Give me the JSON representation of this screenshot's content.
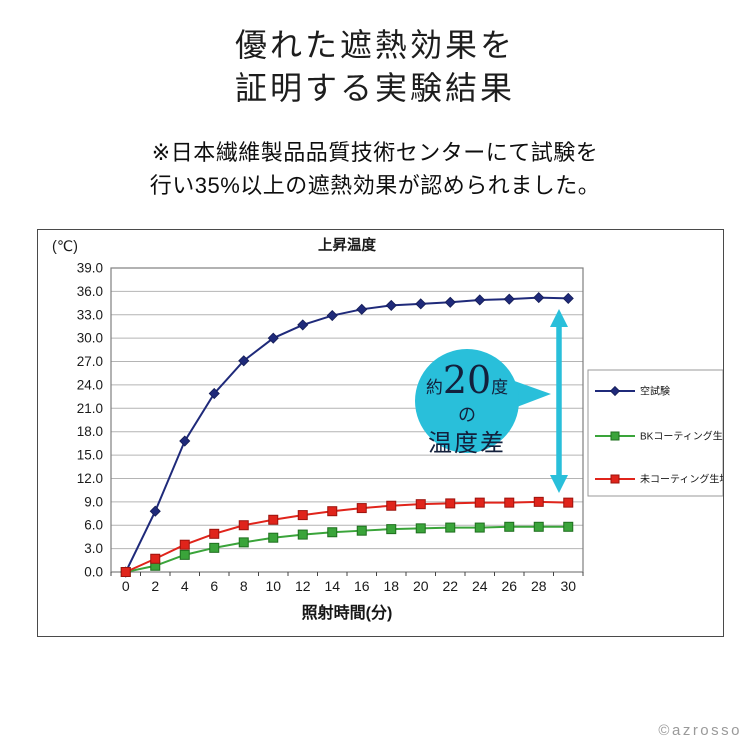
{
  "page": {
    "title": {
      "line1": "優れた遮熱効果を",
      "line2": "証明する実験結果"
    },
    "note": {
      "line1": "※日本繊維製品品質技術センターにて試験を",
      "line2": "行い35%以上の遮熱効果が認められました。"
    },
    "copyright": "©azrosso"
  },
  "chart_data": {
    "type": "line",
    "title": "上昇温度",
    "ylabel": "(℃)",
    "xlabel": "照射時間(分)",
    "ylim": [
      0,
      39
    ],
    "ytick_step": 3,
    "grid": true,
    "legend_position": "right",
    "x": [
      0,
      2,
      4,
      6,
      8,
      10,
      12,
      14,
      16,
      18,
      20,
      22,
      24,
      26,
      28,
      30
    ],
    "series": [
      {
        "name": "空試験",
        "marker": "diamond",
        "color": "#1f2a7a",
        "marker_stroke": "#141c54",
        "values": [
          0.0,
          7.8,
          16.8,
          22.9,
          27.1,
          30.0,
          31.7,
          32.9,
          33.7,
          34.2,
          34.4,
          34.6,
          34.9,
          35.0,
          35.2,
          35.1
        ]
      },
      {
        "name": "BKコーティング生地",
        "marker": "square",
        "color": "#3aa43a",
        "marker_stroke": "#1e6f1e",
        "values": [
          0.0,
          0.8,
          2.2,
          3.1,
          3.8,
          4.4,
          4.8,
          5.1,
          5.3,
          5.5,
          5.6,
          5.7,
          5.7,
          5.8,
          5.8,
          5.8
        ]
      },
      {
        "name": "未コーティング生地",
        "marker": "square",
        "color": "#e0241b",
        "marker_stroke": "#9c130d",
        "values": [
          0.0,
          1.7,
          3.5,
          4.9,
          6.0,
          6.7,
          7.3,
          7.8,
          8.2,
          8.5,
          8.7,
          8.8,
          8.9,
          8.9,
          9.0,
          8.9
        ]
      }
    ],
    "annotation": {
      "bubble": {
        "prefix": "約",
        "big": "20",
        "suffix": "度",
        "middle": "の",
        "bottom": "温度差"
      },
      "bubble_color": "#29bfda",
      "bubble_text_color": "#13203c",
      "arrow_color": "#29bfda"
    },
    "style": {
      "grid_color": "#b4b4b4",
      "plot_border_color": "#7f7f7f",
      "tick_label_color": "#1a1a1a",
      "legend_border_color": "#9a9a9a"
    }
  }
}
